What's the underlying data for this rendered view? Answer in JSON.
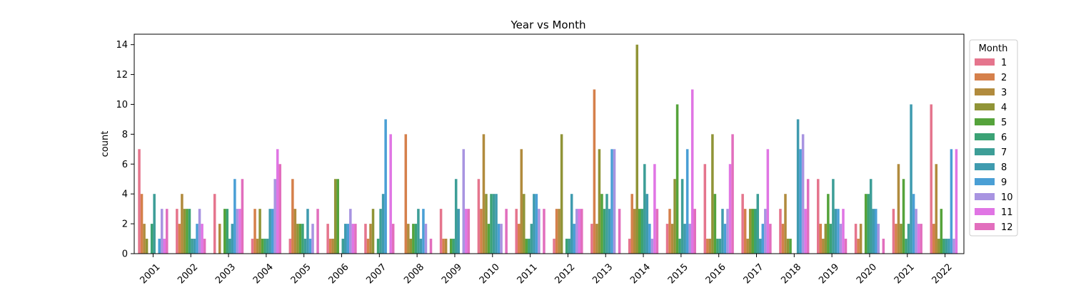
{
  "chart_data": {
    "type": "bar",
    "title": "Year vs Month",
    "xlabel": "",
    "ylabel": "count",
    "ylim": [
      0,
      14.7
    ],
    "yticks": [
      0,
      2,
      4,
      6,
      8,
      10,
      12,
      14
    ],
    "categories": [
      "2001",
      "2002",
      "2003",
      "2004",
      "2005",
      "2006",
      "2007",
      "2008",
      "2009",
      "2010",
      "2011",
      "2012",
      "2013",
      "2014",
      "2015",
      "2016",
      "2017",
      "2018",
      "2019",
      "2020",
      "2021",
      "2022"
    ],
    "legend_title": "Month",
    "legend_position": "right",
    "grid": false,
    "series": [
      {
        "name": "1",
        "color": "#e5758d",
        "values": [
          7,
          3,
          4,
          1,
          1,
          2,
          2,
          0,
          3,
          5,
          3,
          1,
          2,
          1,
          2,
          6,
          4,
          3,
          5,
          2,
          3,
          10
        ]
      },
      {
        "name": "2",
        "color": "#d5804b",
        "values": [
          4,
          2,
          0,
          3,
          5,
          1,
          1,
          8,
          1,
          3,
          2,
          3,
          11,
          4,
          3,
          1,
          3,
          2,
          2,
          1,
          2,
          2
        ]
      },
      {
        "name": "3",
        "color": "#b18b3d",
        "values": [
          2,
          4,
          2,
          1,
          3,
          1,
          2,
          2,
          1,
          8,
          7,
          3,
          2,
          3,
          2,
          1,
          1,
          4,
          1,
          2,
          6,
          6
        ]
      },
      {
        "name": "4",
        "color": "#909437",
        "values": [
          1,
          3,
          0,
          3,
          2,
          5,
          3,
          1,
          0,
          4,
          4,
          8,
          7,
          14,
          5,
          8,
          3,
          1,
          2,
          0,
          2,
          1
        ]
      },
      {
        "name": "5",
        "color": "#55a33b",
        "values": [
          0,
          3,
          3,
          1,
          2,
          5,
          0,
          2,
          1,
          2,
          1,
          0,
          4,
          3,
          10,
          4,
          3,
          1,
          4,
          4,
          5,
          3
        ]
      },
      {
        "name": "6",
        "color": "#3ba275",
        "values": [
          2,
          3,
          3,
          1,
          2,
          0,
          1,
          2,
          1,
          4,
          1,
          1,
          3,
          3,
          1,
          1,
          3,
          0,
          2,
          4,
          1,
          1
        ]
      },
      {
        "name": "7",
        "color": "#3d9e97",
        "values": [
          4,
          1,
          1,
          1,
          1,
          1,
          3,
          3,
          5,
          4,
          2,
          1,
          4,
          6,
          5,
          1,
          4,
          0,
          5,
          5,
          2,
          1
        ]
      },
      {
        "name": "8",
        "color": "#3f9baf",
        "values": [
          0,
          1,
          2,
          3,
          3,
          2,
          4,
          1,
          3,
          4,
          4,
          4,
          3,
          4,
          2,
          3,
          1,
          9,
          3,
          3,
          10,
          1
        ]
      },
      {
        "name": "9",
        "color": "#4a9fd5",
        "values": [
          1,
          2,
          5,
          3,
          1,
          2,
          9,
          3,
          0,
          2,
          4,
          2,
          7,
          2,
          7,
          2,
          2,
          7,
          3,
          3,
          4,
          7
        ]
      },
      {
        "name": "10",
        "color": "#a894e1",
        "values": [
          3,
          3,
          3,
          5,
          2,
          3,
          0,
          2,
          7,
          2,
          3,
          3,
          7,
          1,
          2,
          3,
          3,
          8,
          2,
          2,
          3,
          1
        ]
      },
      {
        "name": "11",
        "color": "#e075e4",
        "values": [
          1,
          2,
          3,
          7,
          0,
          2,
          8,
          0,
          3,
          0,
          0,
          3,
          0,
          6,
          11,
          6,
          7,
          3,
          3,
          0,
          2,
          7
        ]
      },
      {
        "name": "12",
        "color": "#e26ebd",
        "values": [
          3,
          1,
          5,
          6,
          3,
          2,
          2,
          1,
          3,
          3,
          3,
          3,
          3,
          3,
          3,
          8,
          2,
          5,
          1,
          1,
          2,
          0
        ]
      }
    ]
  }
}
